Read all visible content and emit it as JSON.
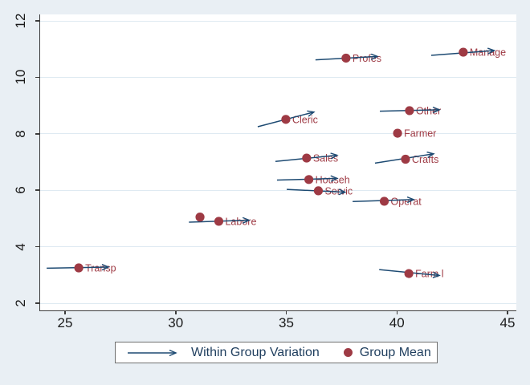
{
  "legend": {
    "variation_label": "Within Group Variation",
    "mean_label": "Group Mean"
  },
  "colors": {
    "background": "#e9eff4",
    "plot_bg": "#ffffff",
    "grid": "#dfeaf2",
    "axis": "#3c3c3c",
    "tick_text": "#1a1a1a",
    "navy_arrow": "#1d4a72",
    "maroon_dot": "#9e3a44",
    "group_label_text": "#9e3a44",
    "legend_text": "#1f3e5e",
    "legend_border": "#6f6f6f"
  },
  "icons": {
    "legend_arrow": "right-arrow-icon",
    "legend_dot": "filled-circle-icon"
  },
  "chart_data": {
    "type": "scatter",
    "title": "",
    "xlabel": "",
    "ylabel": "",
    "xlim": [
      23.8,
      45.4
    ],
    "ylim": [
      1.75,
      12.25
    ],
    "x_ticks": [
      25,
      30,
      35,
      40,
      45
    ],
    "y_ticks": [
      2,
      4,
      6,
      8,
      10,
      12
    ],
    "grid": "horizontal-only",
    "legend_position": "bottom-center",
    "series": [
      {
        "name": "Group Mean",
        "marker": "circle",
        "note": "dark red dot at each group mean; label printed right of dot"
      },
      {
        "name": "Within Group Variation",
        "marker": "arrow",
        "note": "navy arrow segment through each group mean"
      }
    ],
    "groups": [
      {
        "label": "Profes",
        "mean": [
          37.7,
          10.68
        ],
        "arrow": [
          [
            36.32,
            10.62
          ],
          [
            39.12,
            10.74
          ]
        ]
      },
      {
        "label": "Manage",
        "mean": [
          43.0,
          10.89
        ],
        "arrow": [
          [
            41.55,
            10.78
          ],
          [
            44.4,
            10.95
          ]
        ]
      },
      {
        "label": "Other",
        "mean": [
          40.57,
          8.82
        ],
        "arrow": [
          [
            39.23,
            8.8
          ],
          [
            41.92,
            8.85
          ]
        ]
      },
      {
        "label": "Cleric",
        "mean": [
          34.98,
          8.51
        ],
        "arrow": [
          [
            33.71,
            8.25
          ],
          [
            36.25,
            8.77
          ]
        ]
      },
      {
        "label": "Farmer",
        "mean": [
          40.03,
          8.02
        ],
        "arrow": null
      },
      {
        "label": "Sales",
        "mean": [
          35.92,
          7.14
        ],
        "arrow": [
          [
            34.51,
            7.02
          ],
          [
            37.3,
            7.24
          ]
        ]
      },
      {
        "label": "Crafts",
        "mean": [
          40.39,
          7.1
        ],
        "arrow": [
          [
            39.01,
            6.96
          ],
          [
            41.66,
            7.29
          ]
        ]
      },
      {
        "label": "Househ",
        "mean": [
          36.02,
          6.38
        ],
        "arrow": [
          [
            34.58,
            6.36
          ],
          [
            37.3,
            6.42
          ]
        ]
      },
      {
        "label": "Servic",
        "mean": [
          36.45,
          5.98
        ],
        "arrow": [
          [
            35.02,
            6.03
          ],
          [
            37.66,
            5.93
          ]
        ]
      },
      {
        "label": "Operat",
        "mean": [
          39.43,
          5.61
        ],
        "arrow": [
          [
            38.0,
            5.6
          ],
          [
            40.76,
            5.67
          ]
        ]
      },
      {
        "label": "",
        "mean": [
          31.1,
          5.05
        ],
        "arrow": null
      },
      {
        "label": "Labore",
        "mean": [
          31.95,
          4.9
        ],
        "arrow": [
          [
            30.6,
            4.87
          ],
          [
            33.32,
            4.94
          ]
        ]
      },
      {
        "label": "Transp",
        "mean": [
          25.62,
          3.25
        ],
        "arrow": [
          [
            24.17,
            3.24
          ],
          [
            26.96,
            3.28
          ]
        ]
      },
      {
        "label": "Farm l",
        "mean": [
          40.54,
          3.05
        ],
        "arrow": [
          [
            39.2,
            3.19
          ],
          [
            41.92,
            2.98
          ]
        ]
      }
    ]
  }
}
